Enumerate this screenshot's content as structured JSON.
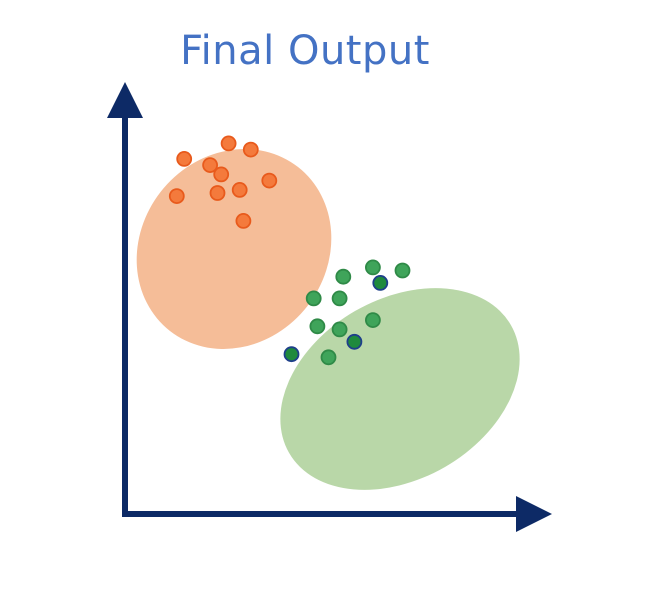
{
  "title": "Final Output",
  "colors": {
    "title": "#4472c4",
    "axis": "#0d2a66",
    "cluster_orange_fill": "#f5bd98",
    "cluster_orange_point": "#f47a3c",
    "cluster_orange_stroke": "#e85a1c",
    "cluster_green_fill": "#b9d7a8",
    "cluster_green_point": "#3fa45a",
    "cluster_green_stroke": "#2f8a47",
    "cluster_green_highlight": "#1f8a3d",
    "cluster_green_highlight_stroke": "#1e3f8a"
  },
  "clusters": [
    {
      "id": "orange",
      "points": [
        {
          "x": 1.6,
          "y": 8.1
        },
        {
          "x": 2.8,
          "y": 8.6
        },
        {
          "x": 3.4,
          "y": 8.4
        },
        {
          "x": 2.3,
          "y": 7.9
        },
        {
          "x": 2.6,
          "y": 7.6
        },
        {
          "x": 3.9,
          "y": 7.4
        },
        {
          "x": 1.4,
          "y": 6.9
        },
        {
          "x": 2.5,
          "y": 7.0
        },
        {
          "x": 3.1,
          "y": 7.1
        },
        {
          "x": 3.2,
          "y": 6.1
        }
      ]
    },
    {
      "id": "green",
      "points": [
        {
          "x": 6.7,
          "y": 4.6,
          "highlight": false
        },
        {
          "x": 7.5,
          "y": 4.5,
          "highlight": false
        },
        {
          "x": 5.9,
          "y": 4.3,
          "highlight": false
        },
        {
          "x": 6.9,
          "y": 4.1,
          "highlight": true
        },
        {
          "x": 5.1,
          "y": 3.6,
          "highlight": false
        },
        {
          "x": 5.8,
          "y": 3.6,
          "highlight": false
        },
        {
          "x": 6.7,
          "y": 2.9,
          "highlight": false
        },
        {
          "x": 5.2,
          "y": 2.7,
          "highlight": false
        },
        {
          "x": 5.8,
          "y": 2.6,
          "highlight": false
        },
        {
          "x": 6.2,
          "y": 2.2,
          "highlight": true
        },
        {
          "x": 4.5,
          "y": 1.8,
          "highlight": true
        },
        {
          "x": 5.5,
          "y": 1.7,
          "highlight": false
        }
      ]
    }
  ]
}
